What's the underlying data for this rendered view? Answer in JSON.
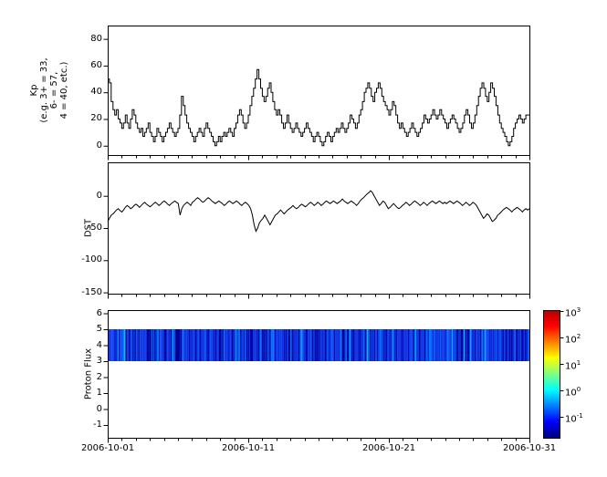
{
  "figure": {
    "background": "#ffffff",
    "line_color": "#000000"
  },
  "panels": {
    "kp": {
      "ylabel": "Kp\n(e.g. 3+ = 33,\n6- = 57,\n4 = 40, etc.)"
    },
    "dst": {
      "ylabel": "DST"
    },
    "proton": {
      "ylabel": "Proton Flux"
    }
  },
  "x_axis": {
    "tick_labels": [
      "2006-10-01",
      "2006-10-11",
      "2006-10-21",
      "2006-10-31"
    ],
    "tick_days": [
      0,
      10,
      20,
      30
    ],
    "range_days": [
      0,
      30
    ],
    "minor_tick_step_days": 1
  },
  "colorbar": {
    "scale": "log",
    "exponents": [
      3,
      2,
      1,
      0,
      -1
    ],
    "fractions": [
      0.993,
      0.786,
      0.579,
      0.371,
      0.164
    ],
    "stops": [
      {
        "p": 0.0,
        "c": "#000080"
      },
      {
        "p": 0.125,
        "c": "#0000ff"
      },
      {
        "p": 0.375,
        "c": "#00ffff"
      },
      {
        "p": 0.625,
        "c": "#ffff00"
      },
      {
        "p": 0.875,
        "c": "#ff0000"
      },
      {
        "p": 1.0,
        "c": "#b40000"
      }
    ]
  },
  "chart_data": [
    {
      "type": "line",
      "name": "Kp index",
      "ylabel": "Kp (e.g. 3+ = 33, 6- = 57, 4 = 40, etc.)",
      "ylim": [
        -7,
        90
      ],
      "yticks": [
        0,
        20,
        40,
        60,
        80
      ],
      "x_range_days": [
        0,
        30
      ],
      "samples_per_day": 8,
      "values": [
        50,
        47,
        33,
        27,
        23,
        27,
        20,
        17,
        13,
        17,
        23,
        17,
        13,
        20,
        27,
        23,
        17,
        13,
        10,
        13,
        7,
        10,
        13,
        17,
        10,
        7,
        3,
        7,
        13,
        10,
        7,
        3,
        7,
        10,
        13,
        17,
        13,
        10,
        7,
        10,
        13,
        23,
        37,
        30,
        23,
        17,
        13,
        10,
        7,
        3,
        7,
        10,
        13,
        10,
        7,
        13,
        17,
        13,
        10,
        7,
        3,
        0,
        3,
        7,
        3,
        7,
        10,
        7,
        10,
        13,
        10,
        7,
        13,
        17,
        23,
        27,
        23,
        17,
        13,
        17,
        23,
        30,
        37,
        43,
        50,
        57,
        50,
        43,
        37,
        33,
        37,
        43,
        47,
        40,
        33,
        27,
        23,
        27,
        23,
        17,
        13,
        17,
        23,
        17,
        13,
        10,
        13,
        17,
        13,
        10,
        7,
        10,
        13,
        17,
        13,
        10,
        7,
        3,
        7,
        10,
        7,
        3,
        0,
        3,
        7,
        10,
        7,
        3,
        7,
        10,
        13,
        10,
        13,
        17,
        13,
        10,
        13,
        17,
        23,
        20,
        17,
        13,
        17,
        23,
        27,
        33,
        40,
        43,
        47,
        43,
        37,
        33,
        40,
        43,
        47,
        43,
        37,
        33,
        30,
        27,
        23,
        27,
        33,
        30,
        23,
        17,
        13,
        17,
        13,
        10,
        7,
        10,
        13,
        17,
        13,
        10,
        7,
        10,
        13,
        17,
        23,
        20,
        17,
        20,
        23,
        27,
        23,
        20,
        23,
        27,
        23,
        20,
        17,
        13,
        17,
        20,
        23,
        20,
        17,
        13,
        10,
        13,
        17,
        23,
        27,
        23,
        17,
        13,
        17,
        23,
        30,
        37,
        43,
        47,
        43,
        37,
        33,
        40,
        47,
        43,
        37,
        30,
        23,
        17,
        13,
        10,
        7,
        3,
        0,
        3,
        7,
        13,
        17,
        20,
        23,
        20,
        17,
        20,
        23,
        23
      ]
    },
    {
      "type": "line",
      "name": "DST",
      "ylabel": "DST",
      "ylim": [
        -152,
        52
      ],
      "yticks": [
        0,
        -50,
        -100,
        -150
      ],
      "x_range_days": [
        0,
        30
      ],
      "samples_per_day": 8,
      "values": [
        -40,
        -35,
        -30,
        -28,
        -25,
        -22,
        -20,
        -23,
        -25,
        -22,
        -18,
        -15,
        -17,
        -20,
        -18,
        -15,
        -13,
        -15,
        -18,
        -15,
        -12,
        -10,
        -13,
        -15,
        -17,
        -15,
        -12,
        -10,
        -12,
        -15,
        -13,
        -10,
        -8,
        -10,
        -13,
        -15,
        -12,
        -10,
        -8,
        -10,
        -12,
        -30,
        -20,
        -15,
        -12,
        -10,
        -12,
        -15,
        -10,
        -8,
        -5,
        -3,
        -5,
        -8,
        -10,
        -8,
        -5,
        -3,
        -5,
        -8,
        -10,
        -12,
        -10,
        -8,
        -10,
        -12,
        -15,
        -13,
        -10,
        -8,
        -10,
        -12,
        -10,
        -8,
        -10,
        -13,
        -15,
        -12,
        -10,
        -12,
        -15,
        -20,
        -30,
        -45,
        -55,
        -50,
        -42,
        -38,
        -35,
        -30,
        -35,
        -40,
        -45,
        -40,
        -35,
        -30,
        -28,
        -25,
        -22,
        -25,
        -28,
        -25,
        -22,
        -20,
        -18,
        -15,
        -18,
        -20,
        -18,
        -15,
        -13,
        -15,
        -17,
        -15,
        -12,
        -10,
        -12,
        -15,
        -13,
        -10,
        -12,
        -15,
        -13,
        -10,
        -8,
        -10,
        -12,
        -10,
        -8,
        -10,
        -12,
        -10,
        -8,
        -5,
        -8,
        -10,
        -12,
        -10,
        -8,
        -10,
        -12,
        -15,
        -12,
        -8,
        -5,
        -3,
        0,
        3,
        5,
        8,
        5,
        0,
        -5,
        -10,
        -15,
        -12,
        -8,
        -10,
        -15,
        -20,
        -18,
        -15,
        -12,
        -15,
        -18,
        -20,
        -18,
        -15,
        -13,
        -10,
        -12,
        -15,
        -13,
        -10,
        -8,
        -10,
        -12,
        -15,
        -13,
        -10,
        -12,
        -15,
        -12,
        -10,
        -8,
        -10,
        -12,
        -10,
        -8,
        -10,
        -12,
        -10,
        -12,
        -10,
        -8,
        -10,
        -12,
        -10,
        -8,
        -10,
        -12,
        -15,
        -13,
        -10,
        -12,
        -15,
        -13,
        -10,
        -12,
        -15,
        -20,
        -25,
        -30,
        -35,
        -32,
        -28,
        -30,
        -35,
        -40,
        -38,
        -35,
        -30,
        -28,
        -25,
        -22,
        -20,
        -18,
        -20,
        -22,
        -25,
        -22,
        -20,
        -18,
        -20,
        -22,
        -25,
        -22,
        -20,
        -22,
        -20
      ]
    },
    {
      "type": "heatmap",
      "name": "Proton Flux",
      "ylabel": "Proton Flux",
      "ylim": [
        -1.8,
        6.2
      ],
      "yticks": [
        -1,
        0,
        1,
        2,
        3,
        4,
        5,
        6
      ],
      "band": {
        "y_min": 3,
        "y_max": 5,
        "description": "continuous blue spectrogram band spanning full time range",
        "flux_log10_range": [
          -1,
          0.5
        ]
      },
      "colorbar_tick_labels": [
        "10^3",
        "10^2",
        "10^1",
        "10^0",
        "10^-1"
      ]
    }
  ]
}
